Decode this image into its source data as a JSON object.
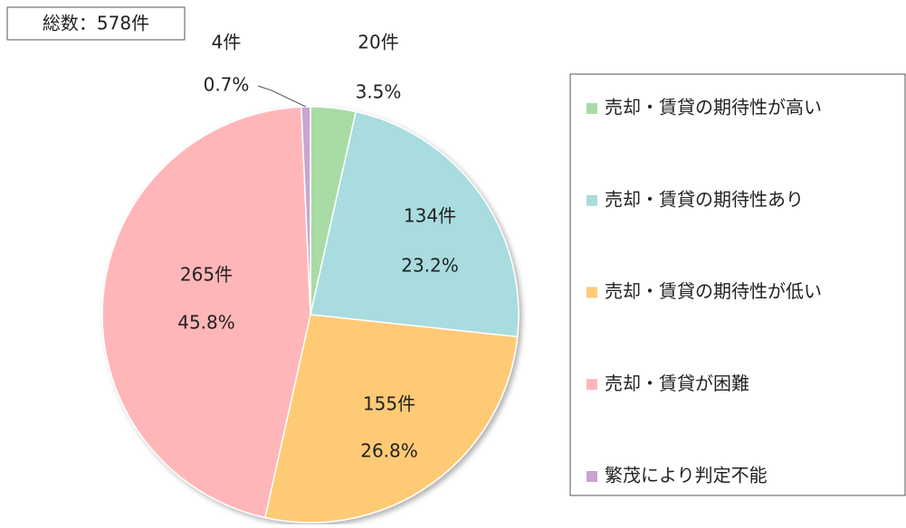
{
  "chart_data": {
    "type": "pie",
    "total_label": "総数：578件",
    "categories": [
      "売却・賃貸の期待性が高い",
      "売却・賃貸の期待性あり",
      "売却・賃貸の期待性が低い",
      "売却・賃貸が困難",
      "繁茂により判定不能"
    ],
    "values": [
      3.5,
      23.2,
      26.8,
      45.8,
      0.7
    ],
    "value_labels": [
      "3.5%",
      "23.2%",
      "26.8%",
      "45.8%",
      "0.7%"
    ],
    "count_labels": [
      "20件",
      "134件",
      "155件",
      "265件",
      "4件"
    ],
    "colors": [
      "#a9dba4",
      "#a8dcdf",
      "#ffca75",
      "#ffb6b9",
      "#c9a5d0"
    ],
    "legend": "right"
  }
}
